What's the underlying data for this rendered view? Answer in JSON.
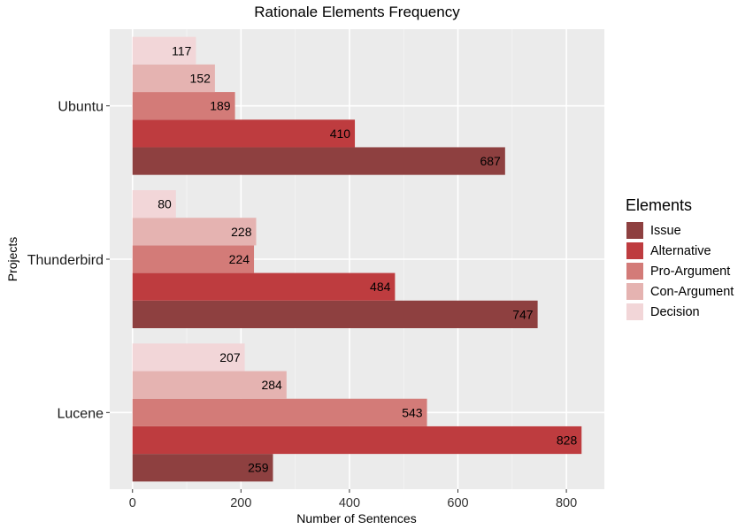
{
  "chart_data": {
    "type": "bar",
    "orientation": "horizontal",
    "title": "Rationale Elements Frequency",
    "xlabel": "Number of Sentences",
    "ylabel": "Projects",
    "categories": [
      "Ubuntu",
      "Thunderbird",
      "Lucene"
    ],
    "series": [
      {
        "name": "Issue",
        "color": "#8E4040",
        "values": [
          687,
          747,
          259
        ]
      },
      {
        "name": "Alternative",
        "color": "#BE3C3F",
        "values": [
          410,
          484,
          828
        ]
      },
      {
        "name": "Pro-Argument",
        "color": "#D37B78",
        "values": [
          189,
          224,
          543
        ]
      },
      {
        "name": "Con-Argument",
        "color": "#E5B3B1",
        "values": [
          152,
          228,
          284
        ]
      },
      {
        "name": "Decision",
        "color": "#F2D6D8",
        "values": [
          117,
          80,
          207
        ]
      }
    ],
    "xticks": [
      0,
      200,
      400,
      600,
      800
    ],
    "xlim": [
      -42,
      870
    ],
    "legend_title": "Elements",
    "legend_position": "right",
    "grid": true
  }
}
